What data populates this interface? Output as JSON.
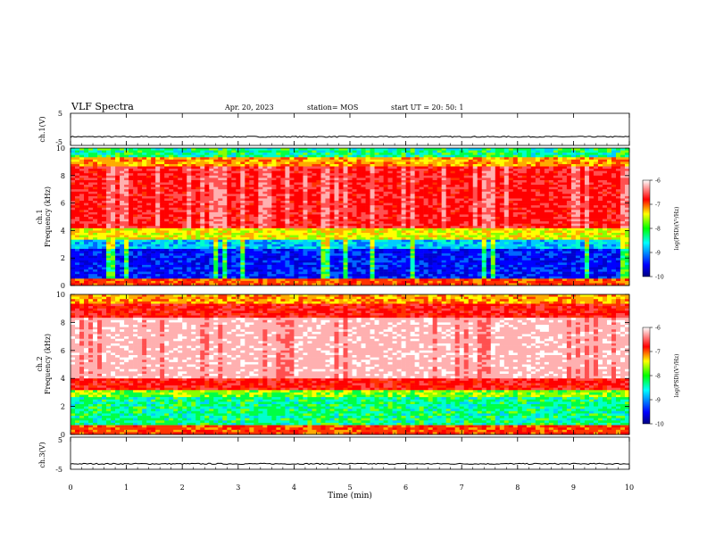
{
  "header": {
    "title": "VLF Spectra",
    "date": "Apr. 20, 2023",
    "station": "station= MOS",
    "start_ut": "start  UT  =   20: 50: 1"
  },
  "chart_data": [
    {
      "panel": "ch1-voltage",
      "type": "line",
      "ylabel": "ch.1(V)",
      "ylim": [
        -5,
        5
      ],
      "y_ticks": [
        "5",
        "-5"
      ],
      "baseline_value": -2.3
    },
    {
      "panel": "ch1-spectrogram",
      "type": "heatmap",
      "ylabel": "ch.1\nFrequency (kHz)",
      "ylim": [
        0,
        10
      ],
      "y_ticks": [
        "0",
        "2",
        "4",
        "6",
        "8",
        "10"
      ],
      "features": {
        "strong_band_kHz": [
          4,
          9
        ],
        "weak_band_kHz": [
          0.3,
          3.5
        ],
        "top_band_kHz": [
          9.3,
          10
        ]
      },
      "colorbar": {
        "label": "log(PSD)(V²/Hz)",
        "range": [
          -10,
          -6
        ],
        "ticks": [
          "-6",
          "-7",
          "-8",
          "-9",
          "-10"
        ]
      }
    },
    {
      "panel": "ch2-spectrogram",
      "type": "heatmap",
      "ylabel": "ch.2\nFrequency (kHz)",
      "ylim": [
        0,
        10
      ],
      "y_ticks": [
        "0",
        "2",
        "4",
        "6",
        "8",
        "10"
      ],
      "features": {
        "saturated_band_kHz": [
          4,
          9
        ],
        "weak_band_kHz": [
          0.3,
          3.5
        ]
      },
      "colorbar": {
        "label": "log(PSD)(V²/Hz)",
        "range": [
          -10,
          -6
        ],
        "ticks": [
          "-6",
          "-7",
          "-8",
          "-9",
          "-10"
        ]
      }
    },
    {
      "panel": "ch3-voltage",
      "type": "line",
      "ylabel": "ch.3(V)",
      "ylim": [
        -5,
        5
      ],
      "y_ticks": [
        "5",
        "-5"
      ],
      "baseline_value": -3.3
    }
  ],
  "x_axis": {
    "label": "Time  (min)",
    "xlim": [
      0,
      10
    ],
    "ticks": [
      "0",
      "1",
      "2",
      "3",
      "4",
      "5",
      "6",
      "7",
      "8",
      "9",
      "10"
    ]
  },
  "colors": {
    "jet": [
      "#00007f",
      "#0000ff",
      "#00ffff",
      "#00ff00",
      "#ffff00",
      "#ff0000",
      "#ffffff"
    ]
  }
}
